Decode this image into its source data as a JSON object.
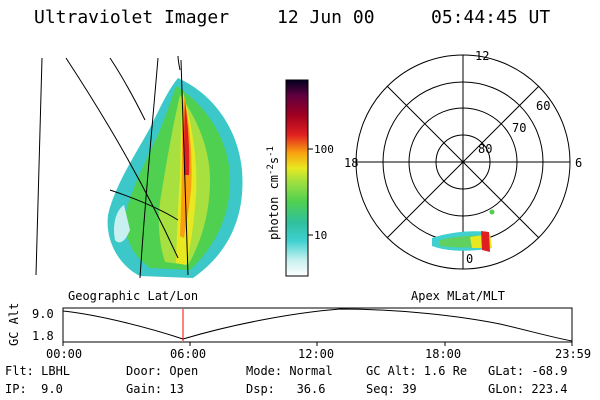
{
  "header": {
    "title": "Ultraviolet Imager",
    "date": "12 Jun 00",
    "time": "05:44:45 UT"
  },
  "left_panel": {
    "caption": "Geographic Lat/Lon"
  },
  "colorbar": {
    "unit": "photon cm",
    "unit_exp1": "-2",
    "unit_mid": "s",
    "unit_exp2": "-1",
    "tick_100": "100",
    "tick_10": "10",
    "scale": "log",
    "colors": [
      "#ffffff",
      "#c8f0f0",
      "#40d0d0",
      "#30c0a0",
      "#50d050",
      "#a0e040",
      "#e8e820",
      "#f8a010",
      "#e02020",
      "#a00020",
      "#600040",
      "#000020"
    ]
  },
  "polar_plot": {
    "caption": "Apex MLat/MLT",
    "mlt_labels": {
      "top": "12",
      "left": "18",
      "right": "6",
      "bottom": "0"
    },
    "lat_labels": [
      "60",
      "70",
      "80"
    ]
  },
  "altitude_track": {
    "ylabel": "GC Alt",
    "ymax": "9.0",
    "ymin": "1.8",
    "xticks": [
      "00:00",
      "06:00",
      "12:00",
      "18:00",
      "23:59"
    ],
    "current_marker_time": "05:44:45"
  },
  "info": {
    "flt": "Flt: LBHL",
    "ip": "IP:  9.0",
    "door": "Door: Open",
    "gain": "Gain: 13",
    "mode": "Mode: Normal",
    "dsp": "Dsp:   36.6",
    "gcalt": "GC Alt: 1.6 Re",
    "seq": "Seq: 39",
    "glat": "GLat: -68.9",
    "glon": "GLon: 223.4"
  }
}
